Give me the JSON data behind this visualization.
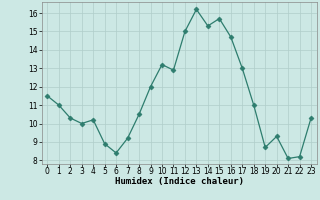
{
  "x": [
    0,
    1,
    2,
    3,
    4,
    5,
    6,
    7,
    8,
    9,
    10,
    11,
    12,
    13,
    14,
    15,
    16,
    17,
    18,
    19,
    20,
    21,
    22,
    23
  ],
  "y": [
    11.5,
    11.0,
    10.3,
    10.0,
    10.2,
    8.9,
    8.4,
    9.2,
    10.5,
    12.0,
    13.2,
    12.9,
    15.0,
    16.2,
    15.3,
    15.7,
    14.7,
    13.0,
    11.0,
    8.7,
    9.3,
    8.1,
    8.2,
    10.3
  ],
  "line_color": "#2e7d6e",
  "marker": "D",
  "marker_size": 2.5,
  "bg_color": "#cce8e4",
  "grid_color": "#b0ceca",
  "xlabel": "Humidex (Indice chaleur)",
  "ylim": [
    7.8,
    16.6
  ],
  "yticks": [
    8,
    9,
    10,
    11,
    12,
    13,
    14,
    15,
    16
  ],
  "xticks": [
    0,
    1,
    2,
    3,
    4,
    5,
    6,
    7,
    8,
    9,
    10,
    11,
    12,
    13,
    14,
    15,
    16,
    17,
    18,
    19,
    20,
    21,
    22,
    23
  ],
  "xlabel_fontsize": 6.5,
  "tick_fontsize": 5.5
}
